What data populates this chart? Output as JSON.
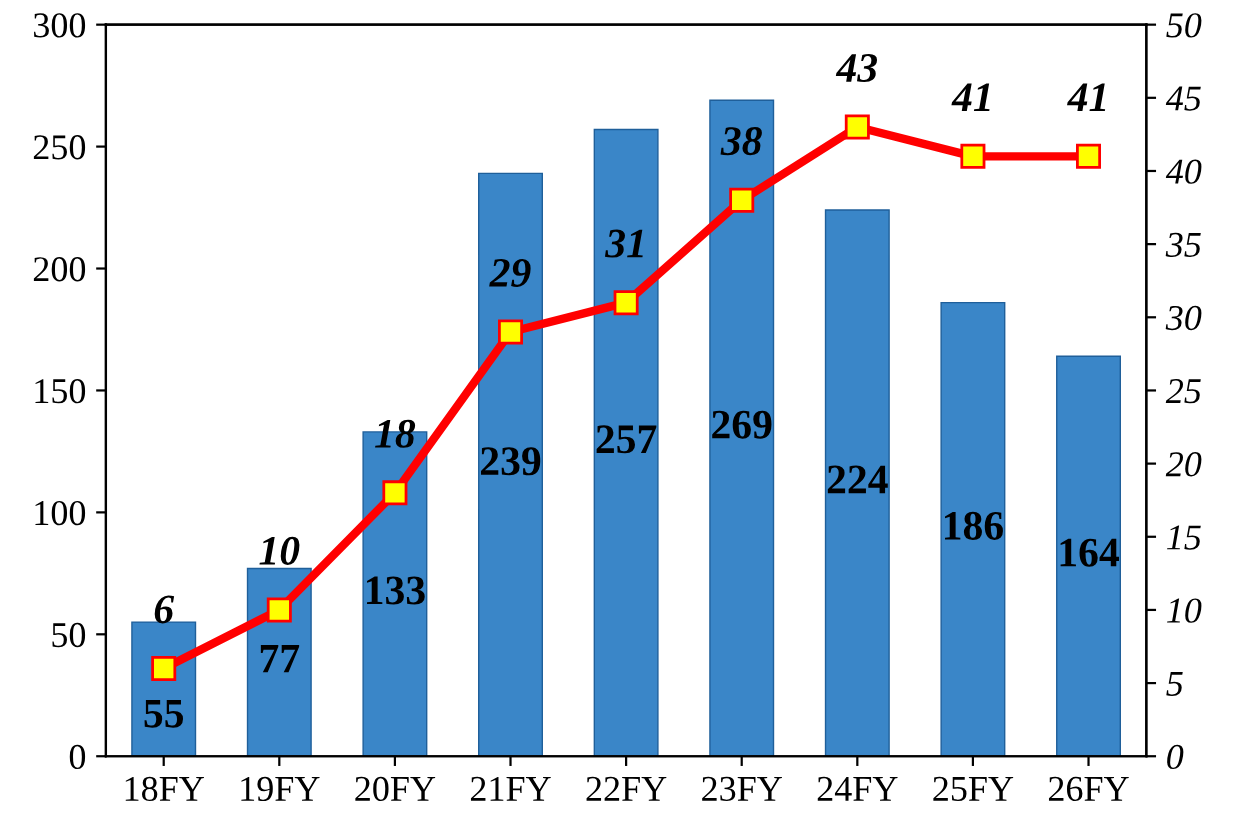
{
  "chart_data": {
    "type": "bar",
    "categories": [
      "18FY",
      "19FY",
      "20FY",
      "21FY",
      "22FY",
      "23FY",
      "24FY",
      "25FY",
      "26FY"
    ],
    "series": [
      {
        "color": "#3a86c8",
        "values": [
          55,
          77,
          133,
          239,
          257,
          269,
          224,
          186,
          164
        ]
      },
      {
        "type": "line",
        "axis": "y2",
        "color": "#ff0000",
        "marker": "square",
        "values": [
          6,
          10,
          18,
          29,
          31,
          38,
          43,
          41,
          41
        ]
      }
    ],
    "ylim": [
      0,
      300
    ],
    "yticks": [
      0,
      50,
      100,
      150,
      200,
      250,
      300
    ],
    "y2lim": [
      0,
      50
    ],
    "y2ticks": [
      0,
      5,
      10,
      15,
      20,
      25,
      30,
      35,
      40,
      45,
      50
    ],
    "data_labels": true,
    "grid": false,
    "legend": false
  }
}
